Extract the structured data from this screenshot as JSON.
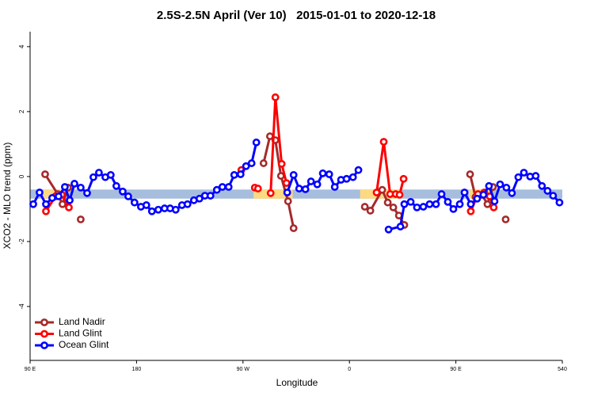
{
  "chart_data": {
    "type": "line",
    "title": "2.5S-2.5N April (Ver 10)   2015-01-01 to 2020-12-18",
    "x_label": "Longitude",
    "y_label": "XCO2 - MLO trend (ppm)",
    "xlim": [
      90,
      540
    ],
    "ylim": [
      -5.66,
      4.46
    ],
    "xticks": [
      {
        "value": 90,
        "label": "90 E"
      },
      180,
      {
        "value": 270,
        "label": "90 W"
      },
      {
        "value": 360,
        "label": "0"
      },
      {
        "value": 450,
        "label": "90 E"
      },
      540
    ],
    "yticks": [
      4,
      2,
      0,
      -2,
      -4
    ],
    "legend": "bottom-left",
    "reference_band": {
      "ylim": [
        -0.68,
        -0.4
      ],
      "color": "#a7bddd"
    },
    "land_spans": {
      "color": "#fdd982",
      "ranges": [
        [
          101,
          118
        ],
        [
          279,
          312
        ],
        [
          369,
          403
        ],
        [
          461,
          479
        ]
      ]
    },
    "series": [
      {
        "name": "Land Nadir",
        "color": "#a52a2a",
        "x": [
          102.7,
          113.4,
          117.4,
          122.1,
          null,
          132.8,
          null,
          287.4,
          292.8,
          297.4,
          302.1,
          308.1,
          312.8,
          null,
          373.0,
          377.7,
          387.7,
          392.4,
          397.1,
          401.8,
          406.4,
          null,
          462.0,
          466.6,
          472.0,
          476.7,
          481.3,
          null,
          492.1
        ],
        "values": [
          0.07,
          -0.54,
          -0.85,
          -0.34,
          null,
          -1.32,
          null,
          0.41,
          1.24,
          1.12,
          0.02,
          -0.76,
          -1.59,
          null,
          -0.93,
          -1.05,
          -0.41,
          -0.8,
          -0.95,
          -1.2,
          -1.49,
          null,
          0.07,
          -0.63,
          -0.56,
          -0.85,
          -0.32,
          null,
          -1.32
        ]
      },
      {
        "name": "Land Glint",
        "color": "#ff0000",
        "x": [
          103.4,
          111.4,
          116.8,
          122.8,
          null,
          268.6,
          null,
          280.0,
          282.7,
          null,
          293.4,
          297.4,
          302.7,
          306.8,
          null,
          383.0,
          389.0,
          394.4,
          399.1,
          402.4,
          405.8,
          null,
          462.6,
          468.7,
          474.0,
          478.7,
          482.0
        ],
        "values": [
          -1.07,
          -0.61,
          -0.56,
          -0.95,
          null,
          0.2,
          null,
          -0.34,
          -0.37,
          null,
          -0.51,
          2.44,
          0.39,
          -0.2,
          null,
          -0.49,
          1.07,
          -0.54,
          -0.54,
          -0.56,
          -0.07,
          null,
          -1.07,
          -0.54,
          -0.49,
          -0.61,
          -0.95
        ]
      },
      {
        "name": "Ocean Glint",
        "color": "#0000ff",
        "x": [
          92.7,
          98.0,
          103.4,
          108.7,
          114.1,
          119.4,
          123.5,
          127.5,
          132.8,
          138.2,
          143.5,
          148.2,
          153.6,
          158.2,
          162.9,
          168.3,
          173.0,
          178.3,
          183.7,
          188.3,
          193.0,
          198.4,
          203.7,
          208.4,
          213.1,
          218.4,
          223.1,
          228.5,
          233.2,
          237.8,
          242.5,
          247.9,
          252.6,
          257.9,
          262.6,
          268.0,
          272.6,
          277.3,
          281.3,
          null,
          307.4,
          312.8,
          317.5,
          322.8,
          327.5,
          332.8,
          337.5,
          342.9,
          347.6,
          352.9,
          357.6,
          363.0,
          367.6,
          null,
          393.1,
          403.1,
          406.4,
          411.8,
          417.1,
          422.5,
          427.8,
          433.2,
          437.9,
          443.2,
          447.9,
          453.3,
          457.3,
          462.6,
          468.0,
          473.3,
          478.0,
          482.7,
          487.4,
          492.7,
          497.4,
          502.8,
          507.5,
          512.8,
          517.5,
          522.8,
          527.5,
          532.2,
          537.6
        ],
        "values": [
          -0.85,
          -0.49,
          -0.85,
          -0.66,
          -0.61,
          -0.32,
          -0.73,
          -0.22,
          -0.34,
          -0.51,
          -0.02,
          0.12,
          -0.02,
          0.05,
          -0.29,
          -0.46,
          -0.61,
          -0.8,
          -0.93,
          -0.88,
          -1.07,
          -1.02,
          -0.98,
          -0.98,
          -1.02,
          -0.88,
          -0.85,
          -0.73,
          -0.68,
          -0.59,
          -0.59,
          -0.41,
          -0.32,
          -0.32,
          0.05,
          0.07,
          0.32,
          0.41,
          1.05,
          null,
          -0.49,
          0.05,
          -0.37,
          -0.39,
          -0.15,
          -0.24,
          0.1,
          0.07,
          -0.32,
          -0.1,
          -0.07,
          -0.02,
          0.2,
          null,
          -1.63,
          -1.54,
          -0.85,
          -0.78,
          -0.95,
          -0.93,
          -0.85,
          -0.85,
          -0.54,
          -0.78,
          -1.0,
          -0.85,
          -0.49,
          -0.85,
          -0.68,
          -0.56,
          -0.29,
          -0.76,
          -0.24,
          -0.34,
          -0.51,
          -0.02,
          0.12,
          0.0,
          0.02,
          -0.29,
          -0.44,
          -0.59,
          -0.8
        ]
      }
    ]
  }
}
